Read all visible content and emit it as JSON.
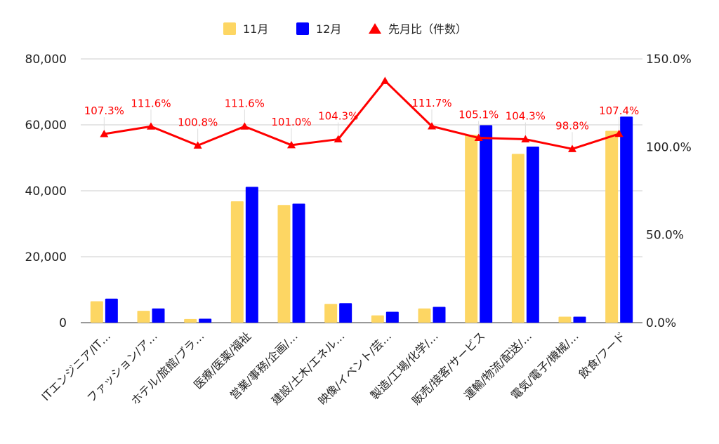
{
  "chart_data": {
    "type": "bar",
    "categories": [
      "ITエンジニア/IT…",
      "ファッション/ア…",
      "ホテル/旅館/ブラ…",
      "医療/医薬/福祉",
      "営業/事務/企画/…",
      "建設/土木/エネル…",
      "映像/イベント/芸…",
      "製造/工場/化学/…",
      "販売/接客/サービス",
      "運輸/物流/配送/…",
      "電気/電子/機械/…",
      "飲食/フード"
    ],
    "series": [
      {
        "name": "11月",
        "type": "bar",
        "axis": "left",
        "color": "#fdd663",
        "values": [
          6500,
          3600,
          1100,
          36800,
          35700,
          5700,
          2200,
          4300,
          57000,
          51200,
          1800,
          58200
        ]
      },
      {
        "name": "12月",
        "type": "bar",
        "axis": "left",
        "color": "#0000ff",
        "values": [
          7300,
          4300,
          1200,
          41200,
          36100,
          5900,
          3300,
          4800,
          59900,
          53400,
          1800,
          62500
        ]
      },
      {
        "name": "先月比（件数）",
        "type": "line",
        "axis": "right",
        "color": "#ff0000",
        "values": [
          107.3,
          111.6,
          100.8,
          111.6,
          101.0,
          104.3,
          137.5,
          111.7,
          105.1,
          104.3,
          98.8,
          107.4
        ],
        "labels": [
          "107.3%",
          "111.6%",
          "100.8%",
          "111.6%",
          "101.0%",
          "104.3%",
          "",
          "111.7%",
          "105.1%",
          "104.3%",
          "98.8%",
          "107.4%"
        ]
      }
    ],
    "y_left": {
      "min": 0,
      "max": 80000,
      "ticks": [
        0,
        20000,
        40000,
        60000,
        80000
      ],
      "tick_labels": [
        "0",
        "20,000",
        "40,000",
        "60,000",
        "80,000"
      ]
    },
    "y_right": {
      "min": 0,
      "max": 150,
      "ticks": [
        0,
        50,
        100,
        150
      ],
      "tick_labels": [
        "0.0%",
        "50.0%",
        "100.0%",
        "150.0%"
      ]
    },
    "grid": true,
    "legend_position": "top-center"
  }
}
